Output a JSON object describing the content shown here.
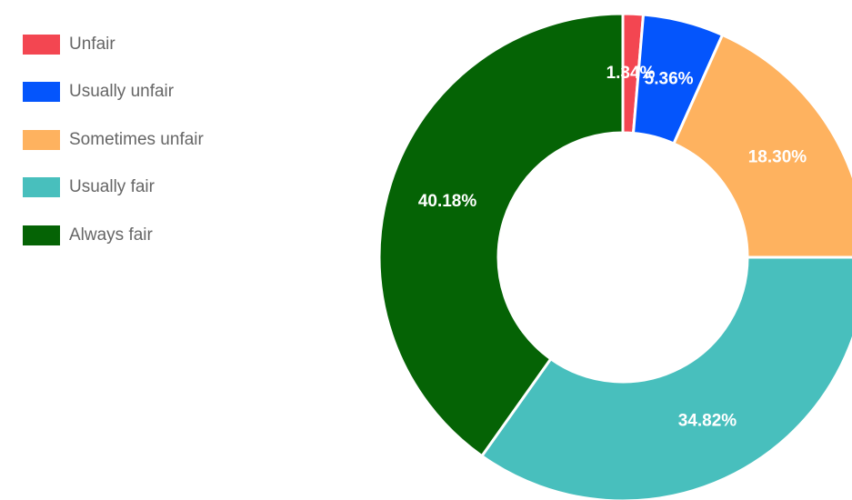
{
  "chart_data": {
    "type": "pie",
    "donut": true,
    "legend_position": "top-left",
    "categories": [
      "Unfair",
      "Usually unfair",
      "Sometimes unfair",
      "Usually fair",
      "Always fair"
    ],
    "values": [
      1.34,
      5.36,
      18.3,
      34.82,
      40.18
    ],
    "labels": [
      "1.34%",
      "5.36%",
      "18.30%",
      "34.82%",
      "40.18%"
    ],
    "colors": [
      "#f34651",
      "#0455fc",
      "#feb25f",
      "#48bfbd",
      "#056305"
    ]
  }
}
